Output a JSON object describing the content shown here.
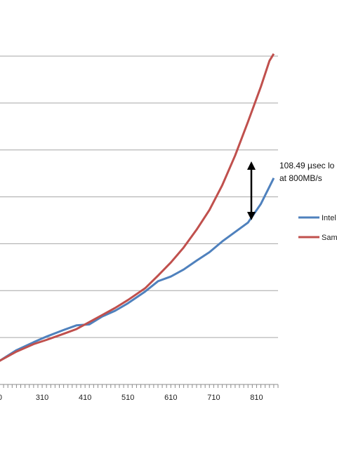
{
  "chart_data": {
    "type": "line",
    "title": "",
    "xlabel": "",
    "ylabel": "",
    "x_ticks": [
      310,
      410,
      510,
      610,
      710,
      810
    ],
    "xlim": [
      210,
      860
    ],
    "ylim": [
      0,
      7
    ],
    "grid": true,
    "legend_position": "right",
    "annotation": {
      "line1": "108.49 µsec lo",
      "line2": "at 800MB/s",
      "x": 800
    },
    "series": [
      {
        "name": "Intel",
        "color": "#4f81bd",
        "x": [
          210,
          250,
          290,
          320,
          360,
          390,
          420,
          450,
          480,
          510,
          550,
          580,
          610,
          640,
          670,
          700,
          730,
          760,
          790,
          820,
          850
        ],
        "y": [
          0.5,
          0.73,
          0.9,
          1.02,
          1.16,
          1.26,
          1.28,
          1.45,
          1.57,
          1.73,
          1.98,
          2.2,
          2.3,
          2.45,
          2.64,
          2.82,
          3.05,
          3.25,
          3.45,
          3.85,
          4.4
        ]
      },
      {
        "name": "Sam",
        "color": "#c0504d",
        "x": [
          210,
          250,
          290,
          320,
          360,
          390,
          420,
          450,
          480,
          510,
          550,
          580,
          610,
          640,
          670,
          700,
          730,
          760,
          790,
          820,
          840,
          850
        ],
        "y": [
          0.5,
          0.7,
          0.86,
          0.95,
          1.08,
          1.18,
          1.33,
          1.48,
          1.63,
          1.8,
          2.05,
          2.32,
          2.6,
          2.92,
          3.3,
          3.72,
          4.25,
          4.88,
          5.6,
          6.35,
          6.9,
          7.05
        ]
      }
    ]
  }
}
